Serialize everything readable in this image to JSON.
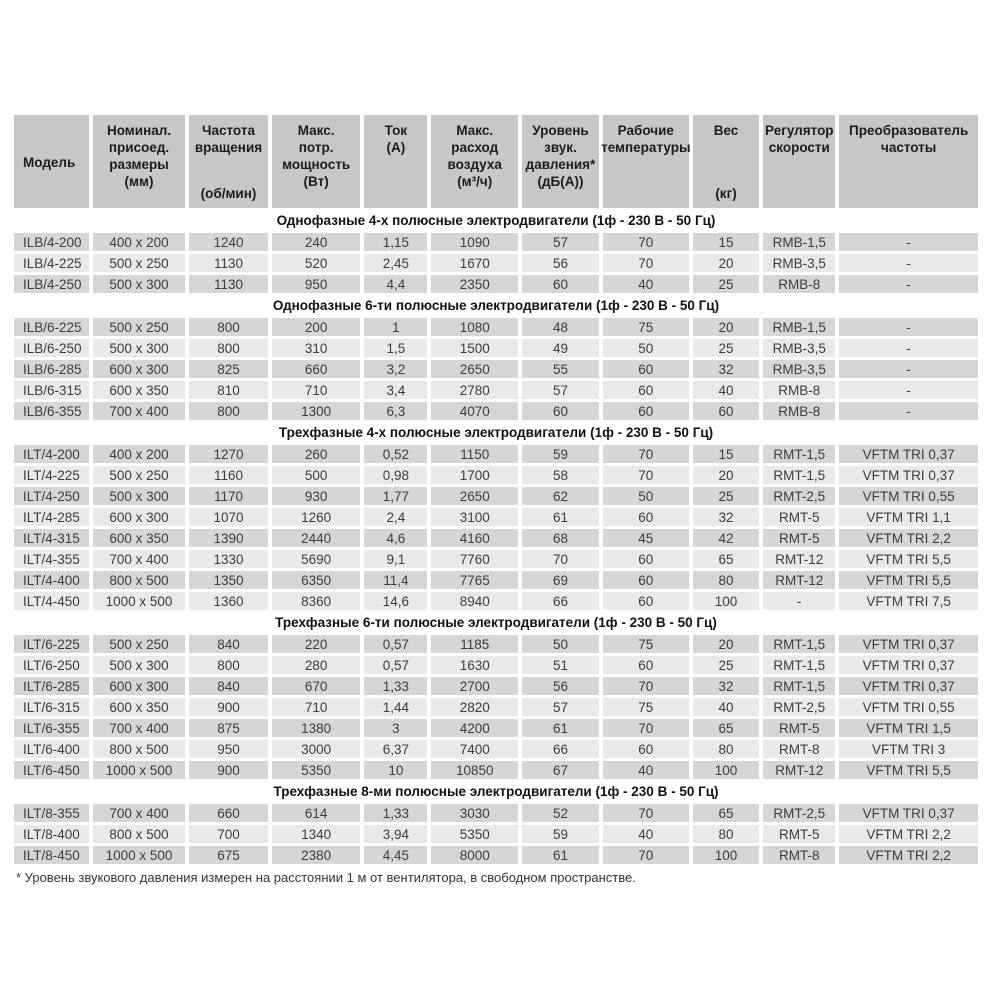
{
  "colors": {
    "header_bg": "#c7c7c7",
    "row_dark": "#d6d6d6",
    "row_light": "#e9e9e9",
    "page_bg": "#ffffff",
    "text": "#3c3c3c"
  },
  "table": {
    "columns": [
      {
        "label": "Модель",
        "unit": ""
      },
      {
        "label": "Номинал.\nприсоед.\nразмеры",
        "unit": "(мм)"
      },
      {
        "label": "Частота\nвращения",
        "unit": "(об/мин)"
      },
      {
        "label": "Макс.\nпотр.\nмощность",
        "unit": "(Вт)"
      },
      {
        "label": "Ток",
        "unit": "(А)"
      },
      {
        "label": "Макс.\nрасход\nвоздуха",
        "unit": "(м³/ч)"
      },
      {
        "label": "Уровень\nзвук.\nдавления*",
        "unit": "(дБ(А))"
      },
      {
        "label": "Рабочие\nтемпературы",
        "unit": ""
      },
      {
        "label": "Вес",
        "unit": "(кг)"
      },
      {
        "label": "Регулятор\nскорости",
        "unit": ""
      },
      {
        "label": "Преобразователь\nчастоты",
        "unit": ""
      }
    ],
    "sections": [
      {
        "title": "Однофазные 4-х полюсные электродвигатели (1ф - 230 В - 50 Гц)",
        "rows": [
          [
            "ILB/4-200",
            "400 x 200",
            "1240",
            "240",
            "1,15",
            "1090",
            "57",
            "70",
            "15",
            "RMB-1,5",
            "-"
          ],
          [
            "ILB/4-225",
            "500 x 250",
            "1130",
            "520",
            "2,45",
            "1670",
            "56",
            "70",
            "20",
            "RMB-3,5",
            "-"
          ],
          [
            "ILB/4-250",
            "500 x 300",
            "1130",
            "950",
            "4,4",
            "2350",
            "60",
            "40",
            "25",
            "RMB-8",
            "-"
          ]
        ]
      },
      {
        "title": "Однофазные 6-ти полюсные электродвигатели (1ф - 230 В - 50 Гц)",
        "rows": [
          [
            "ILB/6-225",
            "500 x 250",
            "800",
            "200",
            "1",
            "1080",
            "48",
            "75",
            "20",
            "RMB-1,5",
            "-"
          ],
          [
            "ILB/6-250",
            "500 x 300",
            "800",
            "310",
            "1,5",
            "1500",
            "49",
            "50",
            "25",
            "RMB-3,5",
            "-"
          ],
          [
            "ILB/6-285",
            "600 x 300",
            "825",
            "660",
            "3,2",
            "2650",
            "55",
            "60",
            "32",
            "RMB-3,5",
            "-"
          ],
          [
            "ILB/6-315",
            "600 x 350",
            "810",
            "710",
            "3,4",
            "2780",
            "57",
            "60",
            "40",
            "RMB-8",
            "-"
          ],
          [
            "ILB/6-355",
            "700 x 400",
            "800",
            "1300",
            "6,3",
            "4070",
            "60",
            "60",
            "60",
            "RMB-8",
            "-"
          ]
        ]
      },
      {
        "title": "Трехфазные 4-х полюсные электродвигатели (1ф - 230 В - 50 Гц)",
        "rows": [
          [
            "ILT/4-200",
            "400 x 200",
            "1270",
            "260",
            "0,52",
            "1150",
            "59",
            "70",
            "15",
            "RMT-1,5",
            "VFTM TRI 0,37"
          ],
          [
            "ILT/4-225",
            "500 x 250",
            "1160",
            "500",
            "0,98",
            "1700",
            "58",
            "70",
            "20",
            "RMT-1,5",
            "VFTM TRI 0,37"
          ],
          [
            "ILT/4-250",
            "500 x 300",
            "1170",
            "930",
            "1,77",
            "2650",
            "62",
            "50",
            "25",
            "RMT-2,5",
            "VFTM TRI 0,55"
          ],
          [
            "ILT/4-285",
            "600 x 300",
            "1070",
            "1260",
            "2,4",
            "3100",
            "61",
            "60",
            "32",
            "RMT-5",
            "VFTM TRI 1,1"
          ],
          [
            "ILT/4-315",
            "600 x 350",
            "1390",
            "2440",
            "4,6",
            "4160",
            "68",
            "45",
            "42",
            "RMT-5",
            "VFTM TRI 2,2"
          ],
          [
            "ILT/4-355",
            "700 x 400",
            "1330",
            "5690",
            "9,1",
            "7760",
            "70",
            "60",
            "65",
            "RMT-12",
            "VFTM TRI 5,5"
          ],
          [
            "ILT/4-400",
            "800 x 500",
            "1350",
            "6350",
            "11,4",
            "7765",
            "69",
            "60",
            "80",
            "RMT-12",
            "VFTM TRI 5,5"
          ],
          [
            "ILT/4-450",
            "1000 x 500",
            "1360",
            "8360",
            "14,6",
            "8940",
            "66",
            "60",
            "100",
            "-",
            "VFTM TRI 7,5"
          ]
        ]
      },
      {
        "title": "Трехфазные 6-ти полюсные электродвигатели (1ф - 230 В - 50 Гц)",
        "rows": [
          [
            "ILT/6-225",
            "500 x 250",
            "840",
            "220",
            "0,57",
            "1185",
            "50",
            "75",
            "20",
            "RMT-1,5",
            "VFTM TRI 0,37"
          ],
          [
            "ILT/6-250",
            "500 x 300",
            "800",
            "280",
            "0,57",
            "1630",
            "51",
            "60",
            "25",
            "RMT-1,5",
            "VFTM TRI 0,37"
          ],
          [
            "ILT/6-285",
            "600 x 300",
            "840",
            "670",
            "1,33",
            "2700",
            "56",
            "70",
            "32",
            "RMT-1,5",
            "VFTM TRI 0,37"
          ],
          [
            "ILT/6-315",
            "600 x 350",
            "900",
            "710",
            "1,44",
            "2820",
            "57",
            "75",
            "40",
            "RMT-2,5",
            "VFTM TRI 0,55"
          ],
          [
            "ILT/6-355",
            "700 x 400",
            "875",
            "1380",
            "3",
            "4200",
            "61",
            "70",
            "65",
            "RMT-5",
            "VFTM TRI 1,5"
          ],
          [
            "ILT/6-400",
            "800 x 500",
            "950",
            "3000",
            "6,37",
            "7400",
            "66",
            "60",
            "80",
            "RMT-8",
            "VFTM TRI 3"
          ],
          [
            "ILT/6-450",
            "1000 x 500",
            "900",
            "5350",
            "10",
            "10850",
            "67",
            "40",
            "100",
            "RMT-12",
            "VFTM TRI 5,5"
          ]
        ]
      },
      {
        "title": "Трехфазные 8-ми полюсные электродвигатели (1ф - 230 В - 50 Гц)",
        "rows": [
          [
            "ILT/8-355",
            "700 x 400",
            "660",
            "614",
            "1,33",
            "3030",
            "52",
            "70",
            "65",
            "RMT-2,5",
            "VFTM TRI 0,37"
          ],
          [
            "ILT/8-400",
            "800 x 500",
            "700",
            "1340",
            "3,94",
            "5350",
            "59",
            "40",
            "80",
            "RMT-5",
            "VFTM TRI 2,2"
          ],
          [
            "ILT/8-450",
            "1000 x 500",
            "675",
            "2380",
            "4,45",
            "8000",
            "61",
            "70",
            "100",
            "RMT-8",
            "VFTM TRI 2,2"
          ]
        ]
      }
    ],
    "footnote": "* Уровень звукового давления измерен на расстоянии 1 м от вентилятора, в свободном пространстве."
  }
}
